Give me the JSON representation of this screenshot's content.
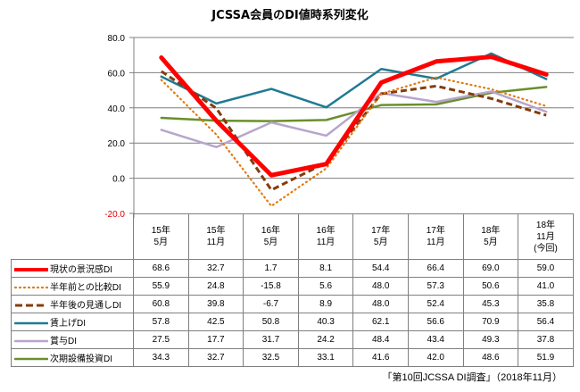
{
  "chart_data": {
    "type": "line",
    "title": "JCSSA会員のDI値時系列変化",
    "xlabel": "",
    "ylabel": "",
    "ylim": [
      -20,
      80
    ],
    "yticks": [
      "80.0",
      "60.0",
      "40.0",
      "20.0",
      "0.0",
      "-20.0"
    ],
    "ytick_values": [
      80,
      60,
      40,
      20,
      0,
      -20
    ],
    "grid": true,
    "legend": "table-below",
    "categories": [
      [
        "15年",
        "5月"
      ],
      [
        "15年",
        "11月"
      ],
      [
        "16年",
        "5月"
      ],
      [
        "16年",
        "11月"
      ],
      [
        "17年",
        "5月"
      ],
      [
        "17年",
        "11月"
      ],
      [
        "18年",
        "5月"
      ],
      [
        "18年",
        "11月",
        "(今回)"
      ]
    ],
    "series": [
      {
        "name": "現状の景況感DI",
        "color": "#ff0000",
        "style": "solid-thick",
        "values": [
          68.6,
          32.7,
          1.7,
          8.1,
          54.4,
          66.4,
          69.0,
          59.0
        ],
        "labels": [
          "68.6",
          "32.7",
          "1.7",
          "8.1",
          "54.4",
          "66.4",
          "69.0",
          "59.0"
        ]
      },
      {
        "name": "半年前との比較DI",
        "color": "#e07b12",
        "style": "dotted",
        "values": [
          55.9,
          24.8,
          -15.8,
          5.6,
          48.0,
          57.3,
          50.6,
          41.0
        ],
        "labels": [
          "55.9",
          "24.8",
          "-15.8",
          "5.6",
          "48.0",
          "57.3",
          "50.6",
          "41.0"
        ]
      },
      {
        "name": "半年後の見通しDI",
        "color": "#843c0c",
        "style": "dashed",
        "values": [
          60.8,
          39.8,
          -6.7,
          8.9,
          48.0,
          52.4,
          45.3,
          35.8
        ],
        "labels": [
          "60.8",
          "39.8",
          "-6.7",
          "8.9",
          "48.0",
          "52.4",
          "45.3",
          "35.8"
        ]
      },
      {
        "name": "賃上げDI",
        "color": "#1f7a93",
        "style": "solid",
        "values": [
          57.8,
          42.5,
          50.8,
          40.3,
          62.1,
          56.6,
          70.9,
          56.4
        ],
        "labels": [
          "57.8",
          "42.5",
          "50.8",
          "40.3",
          "62.1",
          "56.6",
          "70.9",
          "56.4"
        ]
      },
      {
        "name": "賞与DI",
        "color": "#b7a5cc",
        "style": "solid",
        "values": [
          27.5,
          17.7,
          31.7,
          24.2,
          48.4,
          43.4,
          49.3,
          37.8
        ],
        "labels": [
          "27.5",
          "17.7",
          "31.7",
          "24.2",
          "48.4",
          "43.4",
          "49.3",
          "37.8"
        ]
      },
      {
        "name": "次期設備投資DI",
        "color": "#6a8f2a",
        "style": "solid",
        "values": [
          34.3,
          32.7,
          32.5,
          33.1,
          41.6,
          42.0,
          48.6,
          51.9
        ],
        "labels": [
          "34.3",
          "32.7",
          "32.5",
          "33.1",
          "41.6",
          "42.0",
          "48.6",
          "51.9"
        ]
      }
    ],
    "negative_tick_color": "#e00000"
  },
  "footer": "「第10回JCSSA DI調査」（2018年11月）"
}
